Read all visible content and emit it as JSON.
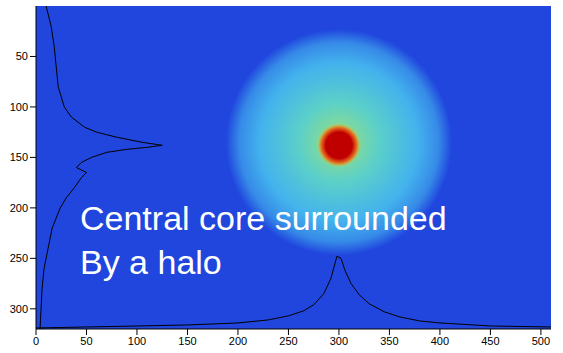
{
  "chart_data": {
    "type": "line",
    "xlim": [
      0,
      510
    ],
    "ylim": [
      0,
      320
    ],
    "xticks": [
      0,
      50,
      100,
      150,
      200,
      250,
      300,
      350,
      400,
      450,
      500
    ],
    "yticks": [
      50,
      100,
      150,
      200,
      250,
      300
    ],
    "image": {
      "color": "#2046de",
      "halo": {
        "center_x": 300,
        "center_y": 135,
        "radius": 112,
        "color": "#45b8ee"
      },
      "core": {
        "center_x": 300,
        "center_y": 138,
        "radius": 22,
        "color": "#c00000"
      }
    },
    "series": [
      {
        "color": "#000000",
        "x": [
          10,
          15,
          18,
          20,
          22,
          28,
          35,
          48,
          60,
          80,
          105,
          125,
          110,
          90,
          70,
          55,
          45,
          40,
          50,
          45,
          38,
          30,
          24,
          16,
          12,
          8,
          6,
          5,
          4
        ],
        "y": [
          0,
          20,
          40,
          60,
          80,
          100,
          110,
          120,
          125,
          130,
          135,
          138,
          140,
          142,
          145,
          150,
          155,
          160,
          165,
          170,
          180,
          190,
          200,
          220,
          240,
          260,
          280,
          300,
          320
        ]
      },
      {
        "color": "#000000",
        "x": [
          0,
          50,
          100,
          150,
          200,
          230,
          250,
          265,
          275,
          285,
          292,
          298,
          302,
          306,
          312,
          320,
          330,
          345,
          360,
          380,
          400,
          450,
          510
        ],
        "y": [
          319,
          318,
          317,
          316,
          314,
          311,
          307,
          302,
          296,
          285,
          270,
          248,
          250,
          262,
          275,
          286,
          295,
          303,
          308,
          312,
          314,
          317,
          318
        ]
      }
    ],
    "annotation": [
      "Central core surrounded",
      "By a halo"
    ]
  }
}
